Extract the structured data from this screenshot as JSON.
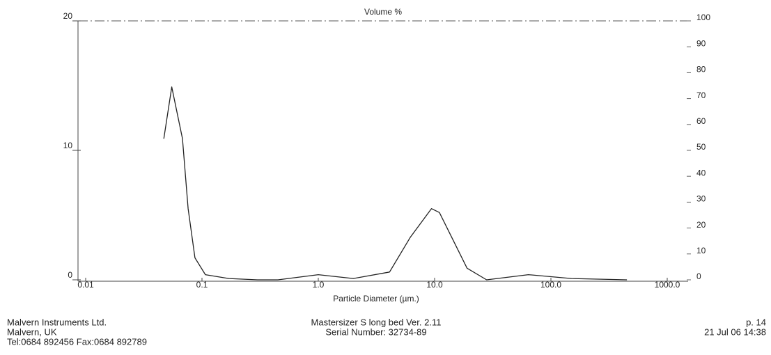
{
  "chart_data": {
    "type": "line",
    "title": "Volume %",
    "x_label": "Particle Diameter (µm.)",
    "log_x": true,
    "x": [
      0.047,
      0.055,
      0.068,
      0.076,
      0.087,
      0.107,
      0.17,
      0.3,
      0.45,
      1.0,
      2.0,
      4.1,
      6.2,
      9.4,
      11,
      14,
      19,
      28,
      64,
      150,
      450
    ],
    "series": [
      {
        "color": "#222222",
        "values": [
          10.9,
          14.9,
          10.9,
          5.5,
          1.7,
          0.4,
          0.1,
          0,
          0,
          0.4,
          0.1,
          0.6,
          3.3,
          5.5,
          5.2,
          3.3,
          0.9,
          0,
          0.4,
          0.1,
          0
        ]
      }
    ],
    "xlim": [
      0.01,
      1000
    ],
    "xticks": [
      {
        "value": 0.01,
        "label": "0.01"
      },
      {
        "value": 0.1,
        "label": "0.1"
      },
      {
        "value": 1,
        "label": "1.0"
      },
      {
        "value": 10,
        "label": "10.0"
      },
      {
        "value": 100,
        "label": "100.0"
      },
      {
        "value": 1000,
        "label": "1000.0"
      }
    ],
    "ylim": [
      0,
      20
    ],
    "yticks": [
      0,
      10,
      20
    ],
    "y2lim": [
      0,
      100
    ],
    "y2ticks": [
      0,
      10,
      20,
      30,
      40,
      50,
      60,
      70,
      80,
      90,
      100
    ]
  },
  "footer": {
    "left": [
      "Malvern Instruments Ltd.",
      "Malvern, UK",
      "Tel:0684 892456 Fax:0684 892789"
    ],
    "center": [
      "Mastersizer S long bed Ver. 2.11",
      "Serial Number:  32734-89"
    ],
    "right": [
      "p. 14",
      "21 Jul 06 14:38"
    ]
  }
}
